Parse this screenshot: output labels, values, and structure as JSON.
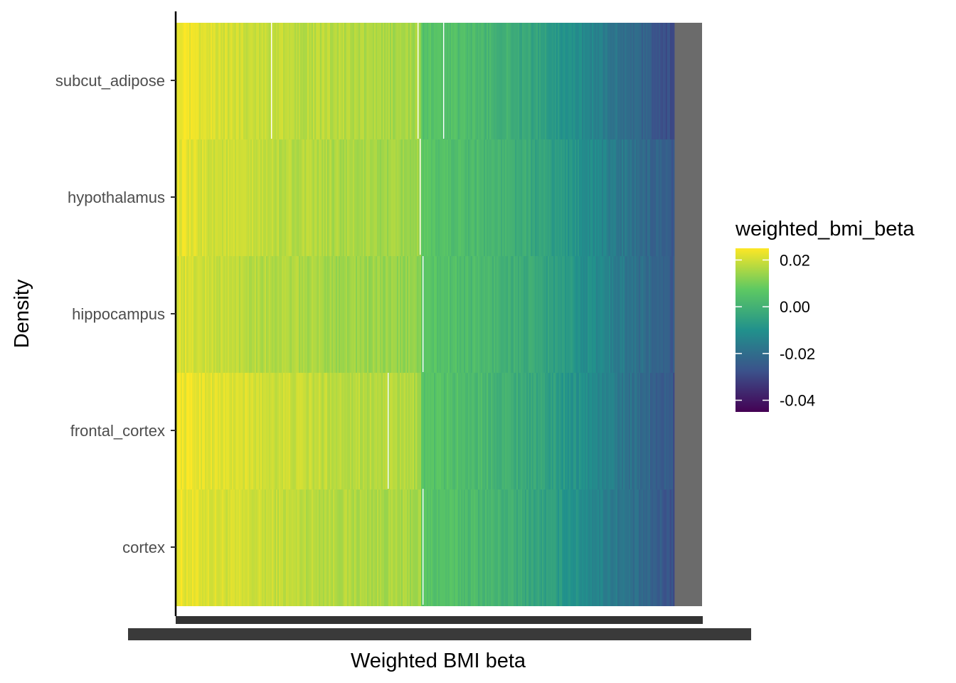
{
  "chart_data": {
    "type": "heatmap",
    "title": "",
    "xlabel": "Weighted BMI beta",
    "ylabel": "Density",
    "rows": [
      "cortex",
      "frontal_cortex",
      "hippocampus",
      "hypothalamus",
      "subcut_adipose"
    ],
    "row_ranges": [
      {
        "name": "cortex",
        "max": 0.024,
        "min": -0.028
      },
      {
        "name": "frontal_cortex",
        "max": 0.025,
        "min": -0.027
      },
      {
        "name": "hippocampus",
        "max": 0.022,
        "min": -0.026
      },
      {
        "name": "hypothalamus",
        "max": 0.023,
        "min": -0.027
      },
      {
        "name": "subcut_adipose",
        "max": 0.024,
        "min": -0.03
      }
    ],
    "fill_legend": {
      "title": "weighted_bmi_beta",
      "breaks": [
        0.02,
        0.0,
        -0.02,
        -0.04
      ],
      "labels": [
        "0.02",
        "0.00",
        "-0.02",
        "-0.04"
      ],
      "limits": [
        -0.045,
        0.025
      ]
    },
    "palette": [
      "#440154",
      "#3b528b",
      "#21918c",
      "#5ec962",
      "#fde725"
    ],
    "missing_color": "#6b6b6b",
    "grid": false,
    "legend_position": "right"
  }
}
